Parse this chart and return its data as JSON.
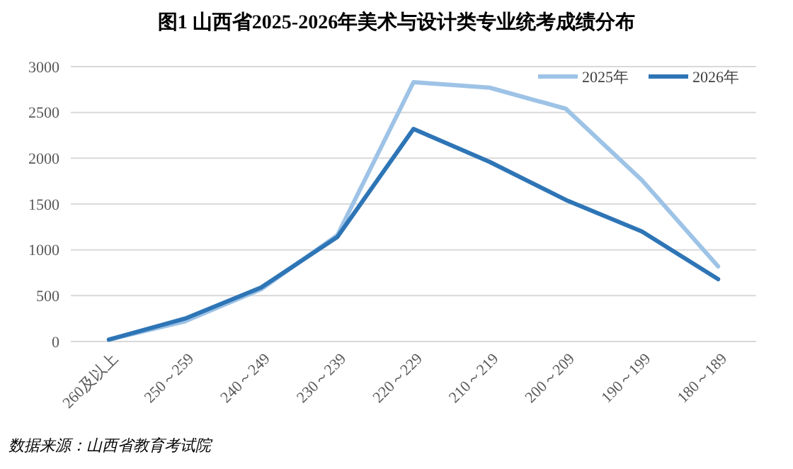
{
  "chart_data": {
    "type": "line",
    "title": "图1  山西省2025-2026年美术与设计类专业统考成绩分布",
    "categories": [
      "260及以上",
      "250～259",
      "240～249",
      "230～239",
      "220～229",
      "210～219",
      "200～209",
      "190～199",
      "180～189"
    ],
    "series": [
      {
        "name": "2025年",
        "color": "#9dc3e6",
        "values": [
          20,
          220,
          570,
          1160,
          2830,
          2770,
          2540,
          1760,
          820
        ]
      },
      {
        "name": "2026年",
        "color": "#2e75b6",
        "values": [
          20,
          250,
          590,
          1140,
          2320,
          1960,
          1545,
          1200,
          680
        ]
      }
    ],
    "ylim": [
      0,
      3000
    ],
    "yticks": [
      0,
      500,
      1000,
      1500,
      2000,
      2500,
      3000
    ],
    "grid": "y",
    "legend": "top right",
    "marker": "none",
    "line_style": "solid",
    "annotations": [
      "数据来源：山西省教育考试院"
    ]
  }
}
